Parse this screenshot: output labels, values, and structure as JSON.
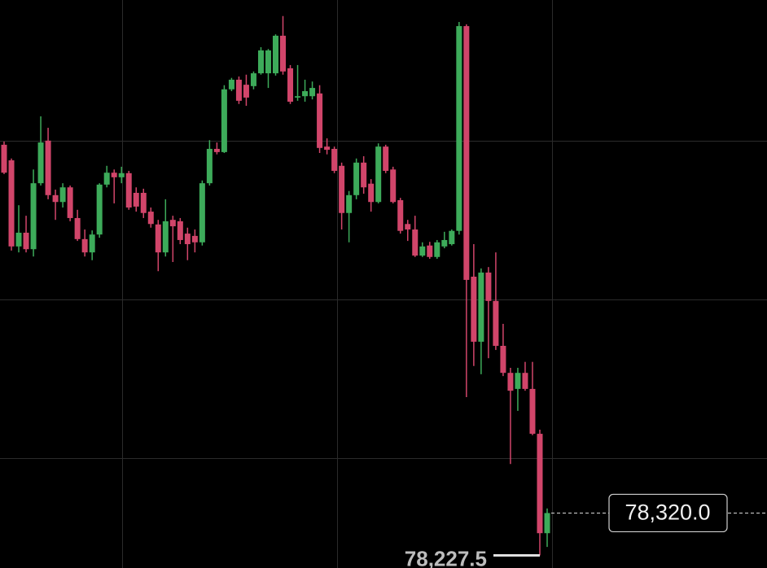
{
  "chart_data": {
    "type": "candlestick",
    "up_color": "#3dab5a",
    "down_color": "#d1456a",
    "ylim": [
      78200,
      79440
    ],
    "last_price": {
      "value": 78320,
      "label": "78,320.0"
    },
    "low_mark": {
      "value": 78227.5,
      "label": "78,227.5"
    },
    "open": [
      79124,
      79090,
      78902,
      78932,
      78896,
      79040,
      79133,
      79014,
      78999,
      79031,
      78964,
      78918,
      78889,
      78928,
      79037,
      79063,
      79053,
      79062,
      79019,
      79019,
      78978,
      78950,
      78889,
      78960,
      78957,
      78930,
      78925,
      78911,
      79040,
      79115,
      79108,
      79245,
      79266,
      79255,
      79252,
      79280,
      79280,
      79280,
      79362,
      79291,
      79227,
      79230,
      79230,
      79236,
      79120,
      79115,
      79078,
      78975,
      79014,
      79085,
      79039,
      78999,
      79120,
      79070,
      79003,
      78951,
      78939,
      78882,
      78904,
      78879,
      78902,
      78907,
      78936,
      79383,
      78836,
      78694,
      78845,
      78783,
      78685,
      78626,
      78591,
      78626,
      78591,
      78493,
      78276
    ],
    "high": [
      79131,
      79094,
      78992,
      78969,
      79070,
      79186,
      79161,
      79026,
      79040,
      79035,
      78982,
      78939,
      78937,
      79040,
      79078,
      79070,
      79076,
      79067,
      79031,
      79028,
      78987,
      78960,
      79005,
      78969,
      78964,
      78943,
      78939,
      79046,
      79134,
      79129,
      79254,
      79270,
      79273,
      79277,
      79284,
      79337,
      79333,
      79365,
      79405,
      79298,
      79298,
      79266,
      79262,
      79254,
      79138,
      79120,
      79085,
      79023,
      79094,
      79099,
      79049,
      79127,
      79124,
      79076,
      79008,
      78960,
      78969,
      78911,
      78912,
      78916,
      78934,
      78939,
      79392,
      79387,
      78907,
      78854,
      78857,
      78889,
      78733,
      78637,
      78637,
      78650,
      78650,
      78502,
      78330
    ],
    "low": [
      79060,
      78893,
      78889,
      78889,
      78880,
      79035,
      79005,
      78960,
      78987,
      78957,
      78914,
      78880,
      78872,
      78921,
      79031,
      78996,
      79040,
      78982,
      78978,
      78964,
      78943,
      78848,
      78880,
      78868,
      78907,
      78872,
      78889,
      78904,
      79035,
      79103,
      79106,
      79241,
      79213,
      79209,
      79245,
      79277,
      79248,
      79275,
      79277,
      79213,
      79220,
      79218,
      79223,
      79106,
      79103,
      79062,
      78939,
      78911,
      79005,
      79017,
      78978,
      78996,
      79062,
      78996,
      78930,
      78914,
      78879,
      78879,
      78875,
      78875,
      78898,
      78904,
      78928,
      78573,
      78641,
      78623,
      78658,
      78676,
      78619,
      78427,
      78543,
      78587,
      78490,
      78227.5,
      78246
    ],
    "close": [
      79063,
      78902,
      78932,
      78896,
      79040,
      79129,
      79014,
      78999,
      79031,
      78964,
      78918,
      78889,
      78928,
      79037,
      79063,
      79053,
      79062,
      78987,
      78989,
      78975,
      78951,
      78889,
      78957,
      78946,
      78916,
      78907,
      78911,
      79040,
      79115,
      79108,
      79245,
      79266,
      79220,
      79227,
      79280,
      79330,
      79330,
      79362,
      79284,
      79218,
      79230,
      79241,
      79248,
      79117,
      79113,
      79067,
      78975,
      79014,
      79085,
      79031,
      78999,
      79120,
      79067,
      78999,
      78936,
      78939,
      78882,
      78902,
      78879,
      78911,
      78916,
      78936,
      79383,
      78829,
      78694,
      78845,
      78783,
      78685,
      78626,
      78587,
      78626,
      78591,
      78493,
      78276,
      78320
    ]
  }
}
